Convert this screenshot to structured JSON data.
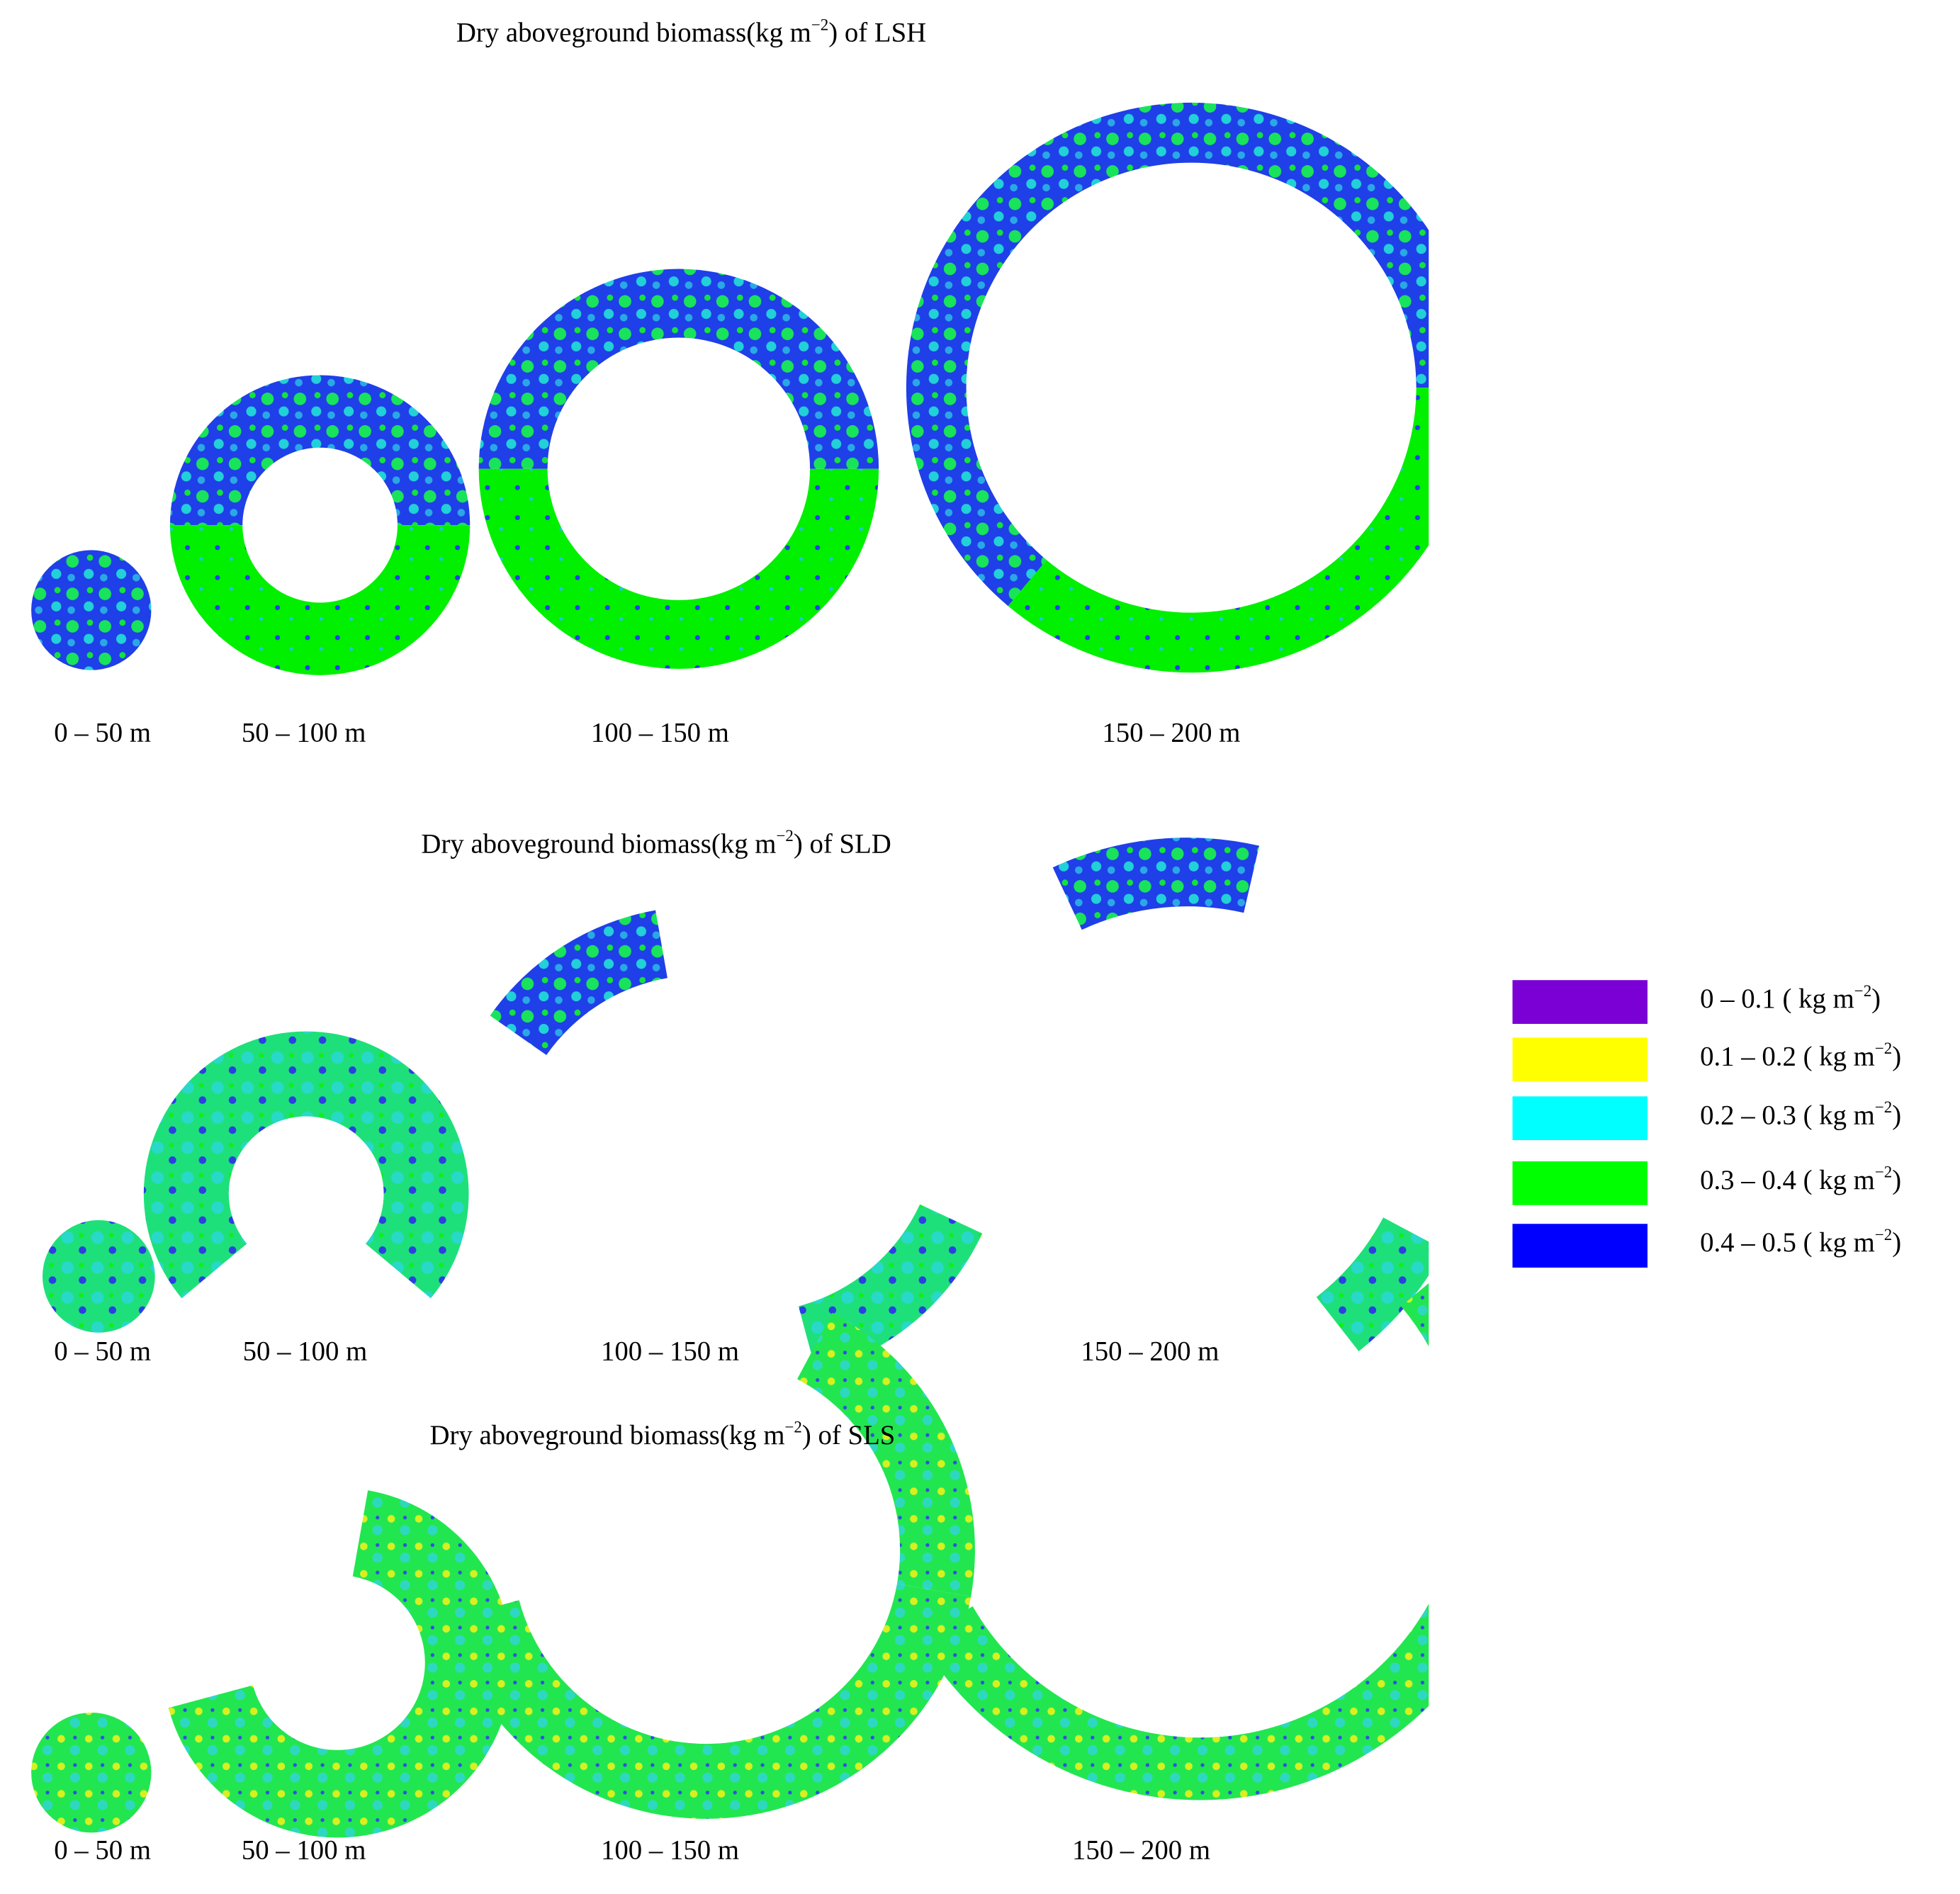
{
  "panels": [
    {
      "title": {
        "text": "Dry aboveground biomass(kg m",
        "sup": "−2",
        "end": ") of LSH"
      },
      "rings": [
        "0 – 50 m",
        "50 – 100 m",
        "100 – 150 m",
        "150 – 200 m"
      ]
    },
    {
      "title": {
        "text": "Dry aboveground biomass(kg m",
        "sup": "−2",
        "end": ") of SLD"
      },
      "rings": [
        "0 – 50 m",
        "50 – 100 m",
        "100 – 150 m",
        "150 – 200 m"
      ]
    },
    {
      "title": {
        "text": "Dry aboveground biomass(kg m",
        "sup": "−2",
        "end": ") of SLS"
      },
      "rings": [
        "0 – 50 m",
        "50 – 100 m",
        "100 – 150 m",
        "150 – 200 m"
      ]
    }
  ],
  "legend": [
    {
      "label": "0 – 0.1 ( kg m",
      "sup": "−2",
      "end": ")",
      "color": "#7a00d6"
    },
    {
      "label": "0.1 – 0.2 ( kg m",
      "sup": "−2",
      "end": ")",
      "color": "#ffff00"
    },
    {
      "label": "0.2 – 0.3 ( kg m",
      "sup": "−2",
      "end": ")",
      "color": "#00ffff"
    },
    {
      "label": "0.3 – 0.4 ( kg m",
      "sup": "−2",
      "end": ")",
      "color": "#00ff00"
    },
    {
      "label": "0.4 – 0.5 ( kg m",
      "sup": "−2",
      "end": ")",
      "color": "#0000ff"
    }
  ]
}
